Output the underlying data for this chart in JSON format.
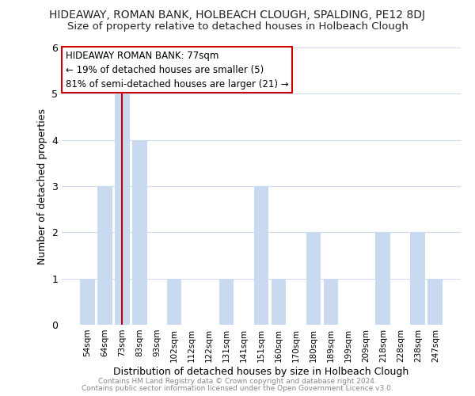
{
  "title": "HIDEAWAY, ROMAN BANK, HOLBEACH CLOUGH, SPALDING, PE12 8DJ",
  "subtitle": "Size of property relative to detached houses in Holbeach Clough",
  "xlabel": "Distribution of detached houses by size in Holbeach Clough",
  "ylabel": "Number of detached properties",
  "bar_labels": [
    "54sqm",
    "64sqm",
    "73sqm",
    "83sqm",
    "93sqm",
    "102sqm",
    "112sqm",
    "122sqm",
    "131sqm",
    "141sqm",
    "151sqm",
    "160sqm",
    "170sqm",
    "180sqm",
    "189sqm",
    "199sqm",
    "209sqm",
    "218sqm",
    "228sqm",
    "238sqm",
    "247sqm"
  ],
  "bar_values": [
    1,
    3,
    5,
    4,
    0,
    1,
    0,
    0,
    1,
    0,
    3,
    1,
    0,
    2,
    1,
    0,
    0,
    2,
    0,
    2,
    1
  ],
  "highlight_bar_index": 2,
  "bar_color": "#c9d9f0",
  "highlight_line_color": "#cc0000",
  "ylim": [
    0,
    6
  ],
  "yticks": [
    0,
    1,
    2,
    3,
    4,
    5,
    6
  ],
  "annotation_title": "HIDEAWAY ROMAN BANK: 77sqm",
  "annotation_line1": "← 19% of detached houses are smaller (5)",
  "annotation_line2": "81% of semi-detached houses are larger (21) →",
  "annotation_box_color": "#ffffff",
  "annotation_box_edgecolor": "#cc0000",
  "footer_line1": "Contains HM Land Registry data © Crown copyright and database right 2024.",
  "footer_line2": "Contains public sector information licensed under the Open Government Licence v3.0.",
  "background_color": "#ffffff",
  "grid_color": "#d0dcee",
  "title_fontsize": 10,
  "subtitle_fontsize": 9.5
}
